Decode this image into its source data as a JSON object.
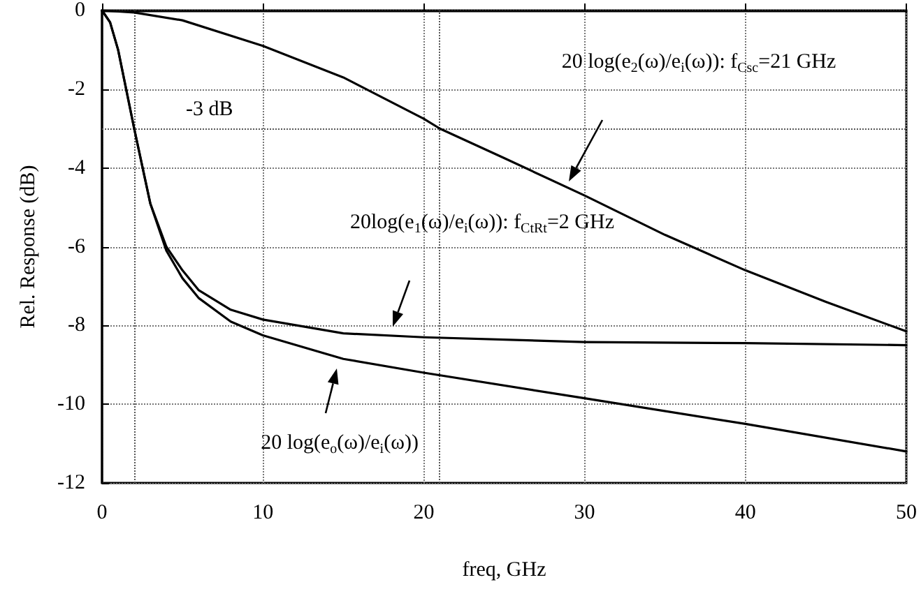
{
  "chart_data": {
    "type": "line",
    "xlabel": "freq, GHz",
    "ylabel": "Rel. Response (dB)",
    "xlim": [
      0,
      50
    ],
    "xticks": [
      0,
      10,
      20,
      30,
      40,
      50
    ],
    "ylim": [
      -12,
      0
    ],
    "yticks": [
      -12,
      -10,
      -8,
      -6,
      -4,
      -2,
      0
    ],
    "grid": true,
    "marker": "none",
    "line_style": "solid",
    "series": [
      {
        "color": "#000000",
        "x": [
          0,
          2,
          5,
          10,
          15,
          20,
          21,
          25,
          30,
          35,
          40,
          45,
          50
        ],
        "values": [
          0,
          -0.05,
          -0.25,
          -0.9,
          -1.7,
          -2.75,
          -3.0,
          -3.75,
          -4.7,
          -5.7,
          -6.6,
          -7.4,
          -8.15
        ]
      },
      {
        "color": "#000000",
        "x": [
          0,
          0.5,
          1,
          2,
          3,
          4,
          5,
          6,
          8,
          10,
          15,
          20,
          30,
          40,
          50
        ],
        "values": [
          0,
          -0.3,
          -1.0,
          -3.0,
          -4.9,
          -6.0,
          -6.6,
          -7.1,
          -7.6,
          -7.85,
          -8.2,
          -8.3,
          -8.42,
          -8.45,
          -8.5
        ]
      },
      {
        "color": "#000000",
        "x": [
          0,
          0.5,
          1,
          2,
          3,
          4,
          5,
          6,
          8,
          10,
          15,
          20,
          30,
          40,
          50
        ],
        "values": [
          0,
          -0.3,
          -1.0,
          -3.0,
          -4.9,
          -6.1,
          -6.8,
          -7.3,
          -7.9,
          -8.25,
          -8.85,
          -9.2,
          -9.85,
          -10.5,
          -11.2
        ]
      }
    ],
    "ref_lines": [
      {
        "axis": "y",
        "value": -3,
        "label": "-3 dB",
        "line_style": "dotted"
      },
      {
        "axis": "x",
        "value": 2,
        "line_style": "dotted"
      },
      {
        "axis": "x",
        "value": 21,
        "line_style": "dotted"
      }
    ],
    "annotations": [
      "20 log(e$_{2}$(ω)/e$_{i}$(ω)): f$_{Csc}$=21 GHz",
      "20log(e$_{1}$(ω)/e$_{i}$(ω)): f$_{CtRt}$=2 GHz",
      "20 log(e$_{o}$(ω)/e$_{i}$(ω))"
    ]
  }
}
